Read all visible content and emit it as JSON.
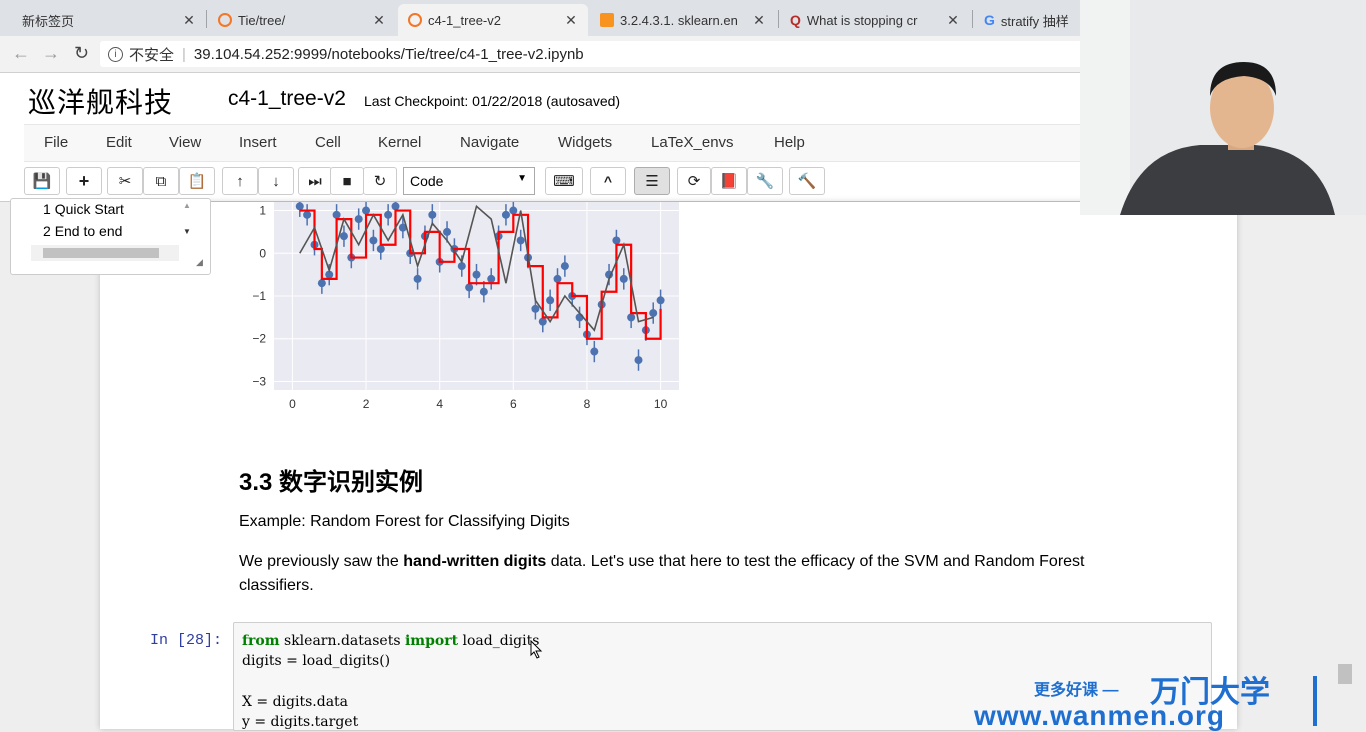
{
  "browser": {
    "tabs": [
      {
        "title": "新标签页",
        "icon": "new-tab-icon"
      },
      {
        "title": "Tie/tree/",
        "icon": "jupyter-icon"
      },
      {
        "title": "c4-1_tree-v2",
        "icon": "jupyter-icon",
        "active": true
      },
      {
        "title": "3.2.4.3.1. sklearn.en",
        "icon": "sklearn-icon"
      },
      {
        "title": "What is stopping cr",
        "icon": "quora-icon"
      },
      {
        "title": "stratify 抽样",
        "icon": "google-icon"
      }
    ],
    "security": "不安全",
    "url": "39.104.54.252:9999/notebooks/Tie/tree/c4-1_tree-v2.ipynb"
  },
  "notebook": {
    "logo": "巡洋舰科技",
    "title": "c4-1_tree-v2",
    "checkpoint": "Last Checkpoint: 01/22/2018 (autosaved)",
    "menu": [
      "File",
      "Edit",
      "View",
      "Insert",
      "Cell",
      "Kernel",
      "Navigate",
      "Widgets",
      "LaTeX_envs",
      "Help"
    ],
    "cell_type": "Code",
    "accent_color": "#303f9f"
  },
  "toc": {
    "items": [
      {
        "num": "1",
        "label": "Quick Start"
      },
      {
        "num": "2",
        "label": "End to end"
      }
    ]
  },
  "chart_data": {
    "type": "scatter",
    "xlabel": "",
    "ylabel": "",
    "xticks": [
      "0",
      "2",
      "4",
      "6",
      "8",
      "10"
    ],
    "yticks": [
      "1",
      "0",
      "−1",
      "−2",
      "−3"
    ],
    "xlim": [
      -0.5,
      10.5
    ],
    "ylim": [
      -3.2,
      1.2
    ],
    "grid": true,
    "series": [
      {
        "style": "points",
        "color": "#4c72b0",
        "x": [
          0.2,
          0.4,
          0.6,
          0.8,
          1.0,
          1.2,
          1.4,
          1.6,
          1.8,
          2.0,
          2.2,
          2.4,
          2.6,
          2.8,
          3.0,
          3.2,
          3.4,
          3.6,
          3.8,
          4.0,
          4.2,
          4.4,
          4.6,
          4.8,
          5.0,
          5.2,
          5.4,
          5.6,
          5.8,
          6.0,
          6.2,
          6.4,
          6.6,
          6.8,
          7.0,
          7.2,
          7.4,
          7.6,
          7.8,
          8.0,
          8.2,
          8.4,
          8.6,
          8.8,
          9.0,
          9.2,
          9.4,
          9.6,
          9.8,
          10.0
        ],
        "y": [
          1.1,
          0.9,
          0.2,
          -0.7,
          -0.5,
          0.9,
          0.4,
          -0.1,
          0.8,
          1.0,
          0.3,
          0.1,
          0.9,
          1.1,
          0.6,
          0.0,
          -0.6,
          0.4,
          0.9,
          -0.2,
          0.5,
          0.1,
          -0.3,
          -0.8,
          -0.5,
          -0.9,
          -0.6,
          0.4,
          0.9,
          1.0,
          0.3,
          -0.1,
          -1.3,
          -1.6,
          -1.1,
          -0.6,
          -0.3,
          -1.0,
          -1.5,
          -1.9,
          -2.3,
          -1.2,
          -0.5,
          0.3,
          -0.6,
          -1.5,
          -2.5,
          -1.8,
          -1.4,
          -1.1
        ]
      },
      {
        "style": "step",
        "color": "#ff0000",
        "x": [
          0.2,
          0.6,
          0.8,
          1.2,
          1.6,
          2.0,
          2.4,
          2.8,
          3.2,
          3.6,
          4.0,
          4.4,
          4.8,
          5.2,
          5.6,
          6.0,
          6.4,
          6.8,
          7.2,
          7.6,
          8.0,
          8.4,
          8.8,
          9.2,
          9.6,
          10.0
        ],
        "y": [
          1.0,
          0.1,
          -0.6,
          0.8,
          -0.1,
          0.9,
          0.2,
          1.0,
          0.0,
          0.5,
          -0.2,
          0.1,
          -0.7,
          -0.7,
          0.5,
          0.9,
          -0.3,
          -1.5,
          -0.7,
          -1.0,
          -2.0,
          -0.9,
          0.2,
          -1.4,
          -2.0,
          -1.3
        ]
      },
      {
        "style": "line",
        "color": "#555555",
        "x": [
          0.2,
          0.6,
          1.0,
          1.4,
          1.8,
          2.2,
          2.6,
          3.0,
          3.4,
          3.8,
          4.2,
          4.6,
          5.0,
          5.4,
          5.8,
          6.2,
          6.6,
          7.0,
          7.4,
          7.8,
          8.2,
          8.6,
          9.0,
          9.4,
          9.8
        ],
        "y": [
          0.0,
          0.6,
          -0.4,
          0.8,
          0.2,
          0.9,
          0.3,
          0.9,
          -0.3,
          0.7,
          0.3,
          -0.2,
          1.1,
          0.8,
          -0.7,
          1.0,
          -1.1,
          -1.6,
          -1.0,
          -1.4,
          -1.8,
          -0.6,
          0.2,
          -1.6,
          -1.5
        ]
      }
    ]
  },
  "content": {
    "heading": "3.3  数字识别实例",
    "para1": "Example: Random Forest for Classifying Digits",
    "para2_a": "We previously saw the ",
    "para2_bold": "hand-written digits",
    "para2_b": " data. Let's use that here to test the efficacy of the SVM and Random Forest",
    "para2_c": "classifiers.",
    "prompt": "In  [28]:",
    "code": {
      "l1_kw1": "from",
      "l1_mod": " sklearn.datasets ",
      "l1_kw2": "import",
      "l1_name": " load_digits",
      "l2": "digits = load_digits()",
      "l3": "X = digits.data",
      "l4": "y = digits.target"
    }
  },
  "watermark": {
    "prefix": "更多好课 —",
    "brand": "万门大学",
    "url": "www.wanmen.org",
    "color": "#1e6fd0"
  }
}
